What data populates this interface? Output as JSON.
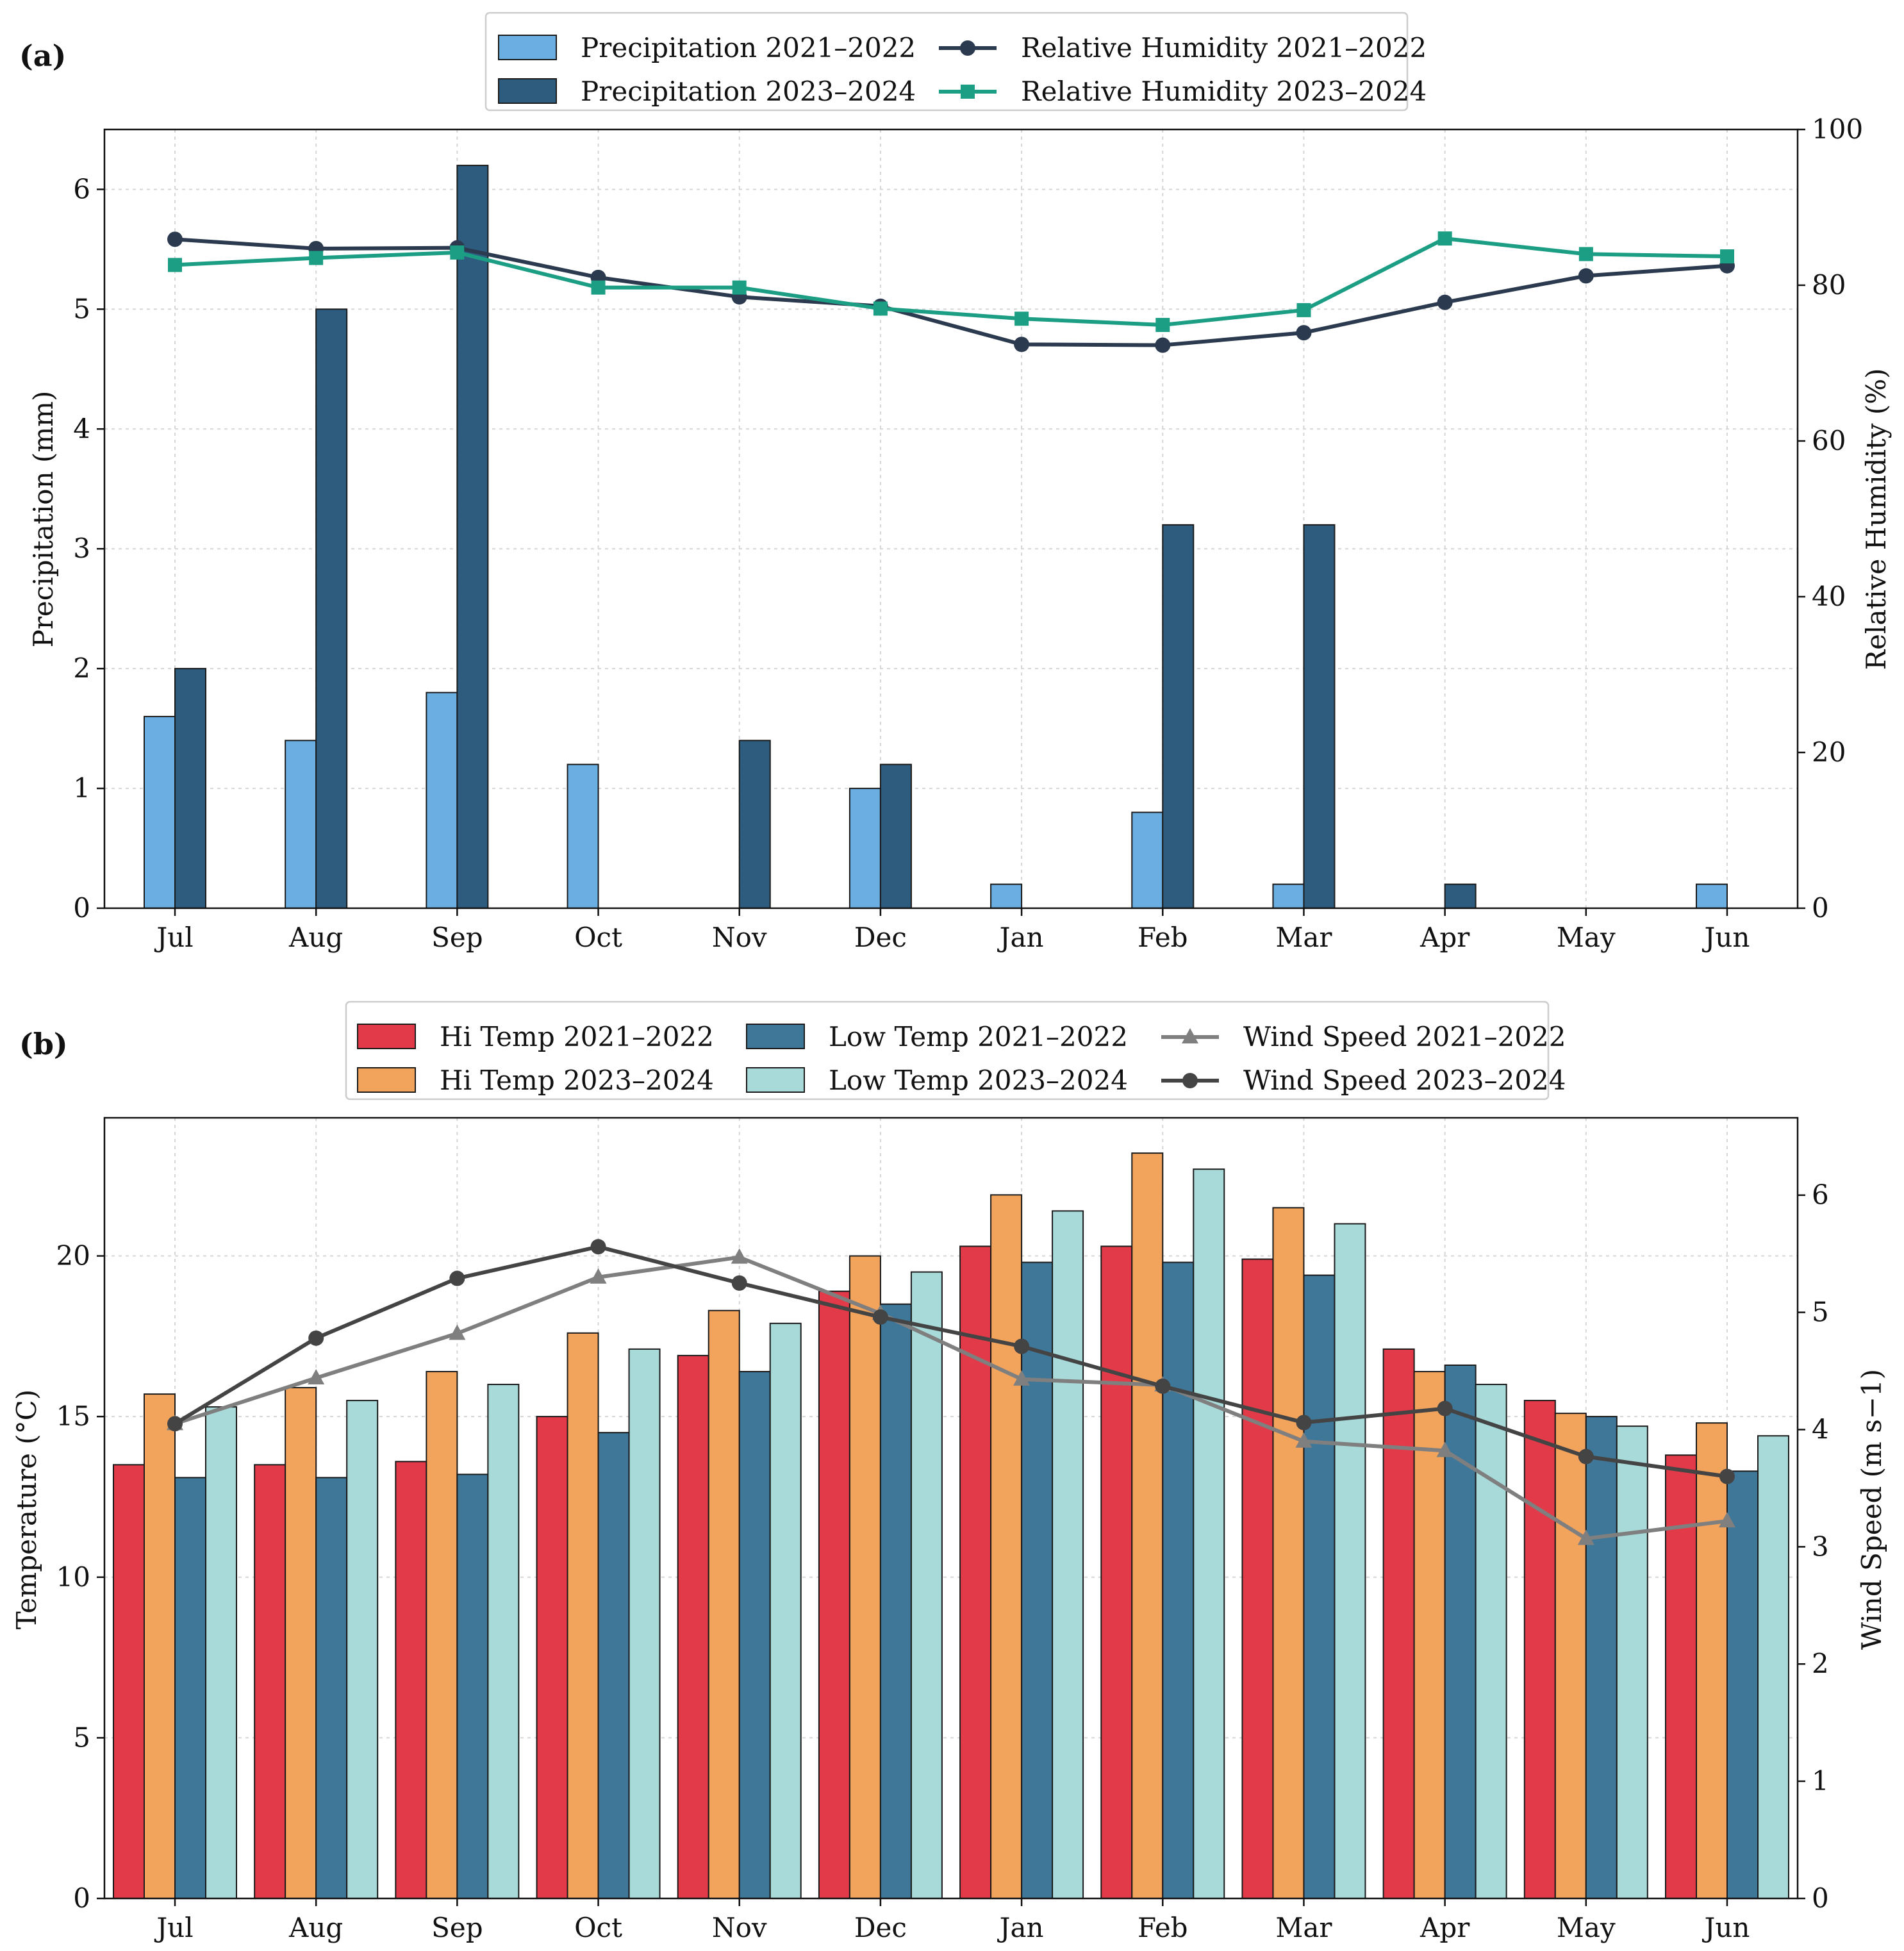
{
  "panel_labels": [
    "(a)",
    "(b)"
  ],
  "colors": {
    "precip_2122": "#6aaee2",
    "precip_2324": "#2d5c7e",
    "rh_2122": "#2b3a4e",
    "rh_2324": "#1c9e84",
    "hi_2122": "#e23a48",
    "hi_2324": "#f2a35c",
    "low_2122": "#3f7799",
    "low_2324": "#a8dada",
    "wind_2122": "#7f7f7f",
    "wind_2324": "#444444"
  },
  "chart_data": [
    {
      "type": "bar",
      "panel": "(a)",
      "categories": [
        "Jul",
        "Aug",
        "Sep",
        "Oct",
        "Nov",
        "Dec",
        "Jan",
        "Feb",
        "Mar",
        "Apr",
        "May",
        "Jun"
      ],
      "ylabel": "Precipitation (mm)",
      "ylim": [
        0,
        6.5
      ],
      "yticks": [
        "0",
        "1",
        "2",
        "3",
        "4",
        "5",
        "6"
      ],
      "y2label": "Relative Humidity (%)",
      "y2lim": [
        0,
        100
      ],
      "y2ticks": [
        "0",
        "20",
        "40",
        "60",
        "80",
        "100"
      ],
      "grid": true,
      "legend_position": "top-center",
      "bar_series": [
        {
          "name": "Precipitation 2021–2022",
          "color_key": "precip_2122",
          "values": [
            1.6,
            1.4,
            1.8,
            1.2,
            0,
            1.0,
            0.2,
            0.8,
            0.2,
            0,
            0,
            0.2
          ]
        },
        {
          "name": "Precipitation 2023–2024",
          "color_key": "precip_2324",
          "values": [
            2.0,
            5.0,
            6.2,
            0,
            1.4,
            1.2,
            0,
            3.2,
            3.2,
            0.2,
            0,
            0
          ]
        }
      ],
      "line_series": [
        {
          "name": "Relative Humidity 2021–2022",
          "color_key": "rh_2122",
          "marker": "circle",
          "axis": "right",
          "values": [
            85.9,
            84.7,
            84.8,
            81.0,
            78.5,
            77.3,
            72.4,
            72.3,
            73.9,
            77.8,
            81.2,
            82.5
          ]
        },
        {
          "name": "Relative Humidity 2023–2024",
          "color_key": "rh_2324",
          "marker": "square",
          "axis": "right",
          "values": [
            82.6,
            83.5,
            84.2,
            79.7,
            79.7,
            77.0,
            75.7,
            74.9,
            76.8,
            86.0,
            84.0,
            83.7
          ]
        }
      ]
    },
    {
      "type": "bar",
      "panel": "(b)",
      "categories": [
        "Jul",
        "Aug",
        "Sep",
        "Oct",
        "Nov",
        "Dec",
        "Jan",
        "Feb",
        "Mar",
        "Apr",
        "May",
        "Jun"
      ],
      "ylabel": "Temperature (°C)",
      "ylim": [
        0,
        24.3
      ],
      "yticks": [
        "0",
        "5",
        "10",
        "15",
        "20"
      ],
      "y2label": "Wind Speed (m s−1)",
      "y2lim": [
        0,
        6.66
      ],
      "y2ticks": [
        "0",
        "1",
        "2",
        "3",
        "4",
        "5",
        "6"
      ],
      "grid": true,
      "legend_position": "top-center",
      "bar_series": [
        {
          "name": "Hi Temp 2021–2022",
          "color_key": "hi_2122",
          "values": [
            13.5,
            13.5,
            13.6,
            15.0,
            16.9,
            18.9,
            20.3,
            20.3,
            19.9,
            17.1,
            15.5,
            13.8
          ]
        },
        {
          "name": "Hi Temp 2023–2024",
          "color_key": "hi_2324",
          "values": [
            15.7,
            15.9,
            16.4,
            17.6,
            18.3,
            20.0,
            21.9,
            23.2,
            21.5,
            16.4,
            15.1,
            14.8
          ]
        },
        {
          "name": "Low Temp 2021–2022",
          "color_key": "low_2122",
          "values": [
            13.1,
            13.1,
            13.2,
            14.5,
            16.4,
            18.5,
            19.8,
            19.8,
            19.4,
            16.6,
            15.0,
            13.3
          ]
        },
        {
          "name": "Low Temp 2023–2024",
          "color_key": "low_2324",
          "values": [
            15.3,
            15.5,
            16.0,
            17.1,
            17.9,
            19.5,
            21.4,
            22.7,
            21.0,
            16.0,
            14.7,
            14.4
          ]
        }
      ],
      "line_series": [
        {
          "name": "Wind Speed 2021–2022",
          "color_key": "wind_2122",
          "marker": "triangle",
          "axis": "right",
          "values": [
            4.05,
            4.44,
            4.82,
            5.3,
            5.47,
            4.99,
            4.43,
            4.38,
            3.9,
            3.82,
            3.07,
            3.22
          ]
        },
        {
          "name": "Wind Speed 2023–2024",
          "color_key": "wind_2324",
          "marker": "circle",
          "axis": "right",
          "values": [
            4.05,
            4.78,
            5.29,
            5.56,
            5.25,
            4.96,
            4.71,
            4.37,
            4.06,
            4.18,
            3.77,
            3.6
          ]
        }
      ]
    }
  ]
}
